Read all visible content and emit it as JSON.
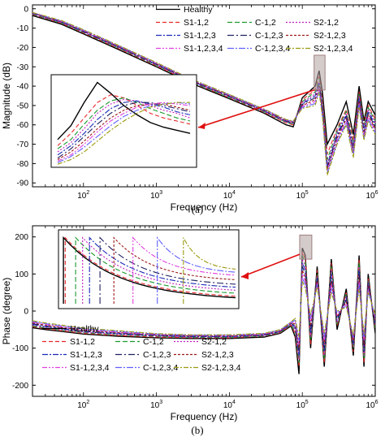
{
  "chart_data": [
    {
      "type": "line",
      "panel_label": "(a)",
      "xlabel": "Frequency (Hz)",
      "ylabel": "Magnitude (dB)",
      "x_scale": "log",
      "xlim": [
        20,
        1000000
      ],
      "ylim": [
        -92,
        2
      ],
      "x_tick_labels": [
        "10^2",
        "10^3",
        "10^4",
        "10^5",
        "10^6"
      ],
      "y_ticks": [
        0,
        -10,
        -20,
        -30,
        -40,
        -50,
        -60,
        -70,
        -80,
        -90
      ],
      "legend": {
        "placement": "top-right",
        "entries": [
          "Healthy",
          "S1-1,2",
          "C-1,2",
          "S2-1,2",
          "S1-1,2,3",
          "C-1,2,3",
          "S2-1,2,3",
          "S1-1,2,3,4",
          "C-1,2,3,4",
          "S2-1,2,3,4"
        ]
      },
      "x_base": [
        20,
        50,
        100,
        300,
        1000,
        3000,
        10000,
        30000,
        60000,
        75000,
        100000,
        150000,
        170000,
        190000,
        220000,
        300000,
        400000,
        500000,
        600000,
        700000,
        800000,
        1000000
      ],
      "series": [
        {
          "name": "Healthy",
          "color": "#000000",
          "dash": "",
          "values": [
            -3.5,
            -8,
            -13,
            -21,
            -30,
            -38.5,
            -46.5,
            -54,
            -60,
            -61,
            -46,
            -40,
            -32,
            -44,
            -70,
            -60,
            -48,
            -65,
            -40,
            -58,
            -48,
            -55
          ]
        },
        {
          "name": "S1-1,2",
          "color": "#e8272b",
          "dash": "5,3",
          "values": [
            -3,
            -7.5,
            -12.5,
            -20.5,
            -29.5,
            -38,
            -46,
            -53.5,
            -59,
            -60,
            -47,
            -42,
            -35,
            -48,
            -75,
            -62,
            -52,
            -68,
            -43,
            -60,
            -50,
            -57
          ]
        },
        {
          "name": "C-1,2",
          "color": "#1a9a2e",
          "dash": "6,3",
          "values": [
            -2.8,
            -7.3,
            -12.2,
            -20.2,
            -29.2,
            -37.8,
            -45.8,
            -53.2,
            -58.7,
            -59.5,
            -48,
            -43,
            -36,
            -50,
            -78,
            -63,
            -53,
            -70,
            -44,
            -61,
            -51,
            -58
          ]
        },
        {
          "name": "S2-1,2",
          "color": "#c020c0",
          "dash": "2,2",
          "values": [
            -2.6,
            -7.1,
            -12,
            -20,
            -29,
            -37.5,
            -45.5,
            -53,
            -58.5,
            -59.2,
            -48.5,
            -44,
            -37,
            -51,
            -80,
            -64,
            -54,
            -71,
            -45,
            -62,
            -52,
            -59
          ]
        },
        {
          "name": "S1-1,2,3",
          "color": "#1c2ab8",
          "dash": "7,2,2,2",
          "values": [
            -2.4,
            -6.9,
            -11.8,
            -19.8,
            -28.8,
            -37.3,
            -45.3,
            -52.8,
            -58.2,
            -59,
            -49,
            -45,
            -38,
            -52,
            -81,
            -65,
            -55,
            -72,
            -46,
            -63,
            -53,
            -60
          ]
        },
        {
          "name": "C-1,2,3",
          "color": "#1f2060",
          "dash": "8,3,2,3",
          "values": [
            -2.3,
            -6.8,
            -11.6,
            -19.6,
            -28.6,
            -37.1,
            -45.1,
            -52.6,
            -58,
            -58.8,
            -49.5,
            -46,
            -39,
            -53,
            -82,
            -66,
            -56,
            -73,
            -47,
            -64,
            -54,
            -61
          ]
        },
        {
          "name": "S2-1,2,3",
          "color": "#9c1a1a",
          "dash": "3,2",
          "values": [
            -2.2,
            -6.6,
            -11.4,
            -19.4,
            -28.4,
            -36.9,
            -44.9,
            -52.4,
            -57.8,
            -58.6,
            -50,
            -47,
            -40,
            -54,
            -83,
            -67,
            -57,
            -74,
            -48,
            -65,
            -55,
            -62
          ]
        },
        {
          "name": "S1-1,2,3,4",
          "color": "#e040e0",
          "dash": "6,2,2,2,2,2",
          "values": [
            -2.1,
            -6.5,
            -11.2,
            -19.2,
            -28.2,
            -36.7,
            -44.7,
            -52.2,
            -57.6,
            -58.4,
            -50.5,
            -48,
            -41,
            -55,
            -84,
            -68,
            -58,
            -75,
            -49,
            -66,
            -56,
            -63
          ]
        },
        {
          "name": "C-1,2,3,4",
          "color": "#6060ff",
          "dash": "8,2,2,2",
          "values": [
            -2,
            -6.3,
            -11,
            -19,
            -28,
            -36.5,
            -44.5,
            -52,
            -57.4,
            -58.2,
            -51,
            -49,
            -42,
            -56,
            -85,
            -69,
            -59,
            -76,
            -50,
            -67,
            -57,
            -64
          ]
        },
        {
          "name": "S2-1,2,3,4",
          "color": "#9a9a10",
          "dash": "6,2,2,2",
          "values": [
            -1.9,
            -6.1,
            -10.8,
            -18.8,
            -27.8,
            -36.3,
            -44.3,
            -51.8,
            -57.2,
            -58,
            -51.5,
            -50,
            -43,
            -57,
            -86,
            -70,
            -60,
            -77,
            -51,
            -68,
            -58,
            -65
          ]
        }
      ],
      "inset": {
        "x_base": [
          0,
          0.1,
          0.2,
          0.3,
          0.4,
          0.5,
          0.6,
          0.7,
          0.8,
          0.9,
          1.0
        ],
        "series_values": [
          [
            -74,
            -65,
            -50,
            -37,
            -44,
            -52,
            -58,
            -63,
            -66,
            -68,
            -70
          ],
          [
            -78,
            -70,
            -60,
            -50,
            -45,
            -47,
            -52,
            -57,
            -60,
            -62,
            -64
          ],
          [
            -80,
            -74,
            -64,
            -55,
            -49,
            -47,
            -50,
            -54,
            -57,
            -60,
            -62
          ],
          [
            -82,
            -76,
            -67,
            -57,
            -51,
            -48,
            -49,
            -52,
            -55,
            -57,
            -60
          ],
          [
            -84,
            -78,
            -70,
            -61,
            -54,
            -50,
            -49,
            -51,
            -53,
            -56,
            -58
          ],
          [
            -86,
            -80,
            -72,
            -64,
            -57,
            -52,
            -50,
            -50,
            -52,
            -54,
            -56
          ],
          [
            -87,
            -82,
            -75,
            -67,
            -60,
            -55,
            -52,
            -51,
            -51,
            -53,
            -55
          ],
          [
            -88,
            -84,
            -77,
            -69,
            -62,
            -57,
            -53,
            -51,
            -50,
            -51,
            -52
          ],
          [
            -89,
            -85,
            -79,
            -72,
            -65,
            -59,
            -55,
            -52,
            -51,
            -50,
            -51
          ],
          [
            -90,
            -87,
            -82,
            -75,
            -68,
            -62,
            -57,
            -53,
            -51,
            -50,
            -50
          ]
        ]
      }
    },
    {
      "type": "line",
      "panel_label": "(b)",
      "xlabel": "Frequency (Hz)",
      "ylabel": "Phase (degree)",
      "x_scale": "log",
      "xlim": [
        20,
        1000000
      ],
      "ylim": [
        -230,
        230
      ],
      "x_tick_labels": [
        "10^2",
        "10^3",
        "10^4",
        "10^5",
        "10^6"
      ],
      "y_ticks": [
        200,
        100,
        0,
        -100,
        -200
      ],
      "legend": {
        "placement": "bottom-center",
        "entries": [
          "Healthy",
          "S1-1,2",
          "C-1,2",
          "S2-1,2",
          "S1-1,2,3",
          "C-1,2,3",
          "S2-1,2,3",
          "S1-1,2,3,4",
          "C-1,2,3,4",
          "S2-1,2,3,4"
        ]
      },
      "x_base": [
        20,
        30,
        50,
        100,
        300,
        1000,
        3000,
        10000,
        30000,
        50000,
        70000,
        80000,
        90000,
        100000,
        110000,
        130000,
        160000,
        200000,
        250000,
        300000,
        400000,
        500000,
        600000,
        700000,
        800000,
        1000000
      ],
      "series": [
        {
          "name": "Healthy",
          "color": "#000000",
          "dash": "",
          "values": [
            -45,
            -50,
            -55,
            -62,
            -68,
            -72,
            -74,
            -74,
            -70,
            -60,
            -40,
            -70,
            -170,
            170,
            150,
            -100,
            120,
            -150,
            140,
            -50,
            60,
            -120,
            150,
            -150,
            100,
            -60
          ]
        },
        {
          "name": "S1-1,2",
          "color": "#e8272b",
          "dash": "5,3",
          "values": [
            -42,
            -48,
            -53,
            -60,
            -66,
            -70,
            -72,
            -72,
            -68,
            -58,
            -38,
            -60,
            -150,
            160,
            140,
            -90,
            110,
            -140,
            130,
            -40,
            50,
            -110,
            140,
            -140,
            90,
            -50
          ]
        },
        {
          "name": "C-1,2",
          "color": "#1a9a2e",
          "dash": "6,3",
          "values": [
            -40,
            -46,
            -51,
            -58,
            -64,
            -68,
            -71,
            -71,
            -67,
            -57,
            -36,
            -55,
            -140,
            150,
            130,
            -80,
            100,
            -130,
            120,
            -35,
            45,
            -100,
            130,
            -130,
            85,
            -45
          ]
        },
        {
          "name": "S2-1,2",
          "color": "#c020c0",
          "dash": "2,2",
          "values": [
            -38,
            -44,
            -50,
            -57,
            -63,
            -67,
            -70,
            -70,
            -66,
            -56,
            -35,
            -50,
            -130,
            140,
            120,
            -70,
            95,
            -120,
            110,
            -30,
            40,
            -95,
            120,
            -120,
            80,
            -40
          ]
        },
        {
          "name": "S1-1,2,3",
          "color": "#1c2ab8",
          "dash": "7,2,2,2",
          "values": [
            -36,
            -42,
            -48,
            -55,
            -61,
            -66,
            -69,
            -69,
            -65,
            -55,
            -34,
            -45,
            -120,
            130,
            110,
            -60,
            90,
            -110,
            100,
            -25,
            35,
            -90,
            110,
            -110,
            75,
            -35
          ]
        },
        {
          "name": "C-1,2,3",
          "color": "#1f2060",
          "dash": "8,3,2,3",
          "values": [
            -34,
            -40,
            -46,
            -54,
            -60,
            -65,
            -68,
            -68,
            -64,
            -54,
            -33,
            -40,
            -110,
            120,
            100,
            -50,
            85,
            -100,
            90,
            -20,
            30,
            -85,
            100,
            -100,
            70,
            -30
          ]
        },
        {
          "name": "S2-1,2,3",
          "color": "#9c1a1a",
          "dash": "3,2",
          "values": [
            -32,
            -38,
            -44,
            -52,
            -58,
            -64,
            -67,
            -67,
            -63,
            -53,
            -32,
            -35,
            -100,
            110,
            90,
            -40,
            80,
            -90,
            80,
            -15,
            25,
            -80,
            90,
            -90,
            65,
            -25
          ]
        },
        {
          "name": "S1-1,2,3,4",
          "color": "#e040e0",
          "dash": "6,2,2,2,2,2",
          "values": [
            -30,
            -36,
            -42,
            -50,
            -57,
            -63,
            -66,
            -66,
            -62,
            -52,
            -31,
            -30,
            -90,
            100,
            80,
            -30,
            75,
            -80,
            70,
            -10,
            20,
            -75,
            80,
            -80,
            60,
            -20
          ]
        },
        {
          "name": "C-1,2,3,4",
          "color": "#6060ff",
          "dash": "8,2,2,2",
          "values": [
            -28,
            -34,
            -40,
            -48,
            -55,
            -62,
            -65,
            -65,
            -61,
            -51,
            -30,
            -25,
            -80,
            90,
            70,
            -20,
            70,
            -70,
            60,
            -5,
            15,
            -70,
            70,
            -70,
            55,
            -15
          ]
        },
        {
          "name": "S2-1,2,3,4",
          "color": "#9a9a10",
          "dash": "6,2,2,2",
          "values": [
            -26,
            -32,
            -38,
            -46,
            -53,
            -61,
            -64,
            -64,
            -60,
            -50,
            -29,
            -20,
            -70,
            80,
            60,
            -10,
            65,
            -60,
            50,
            0,
            10,
            -65,
            60,
            -60,
            50,
            -10
          ]
        }
      ],
      "inset": {
        "start_values": [
          200,
          200,
          200,
          200,
          200,
          200,
          200,
          200,
          200,
          200
        ],
        "end_values": [
          0,
          5,
          15,
          25,
          35,
          45,
          60,
          75,
          85,
          95
        ],
        "jump_positions": [
          0.01,
          0.02,
          0.08,
          0.12,
          0.16,
          0.22,
          0.3,
          0.41,
          0.55,
          0.7
        ]
      }
    }
  ]
}
